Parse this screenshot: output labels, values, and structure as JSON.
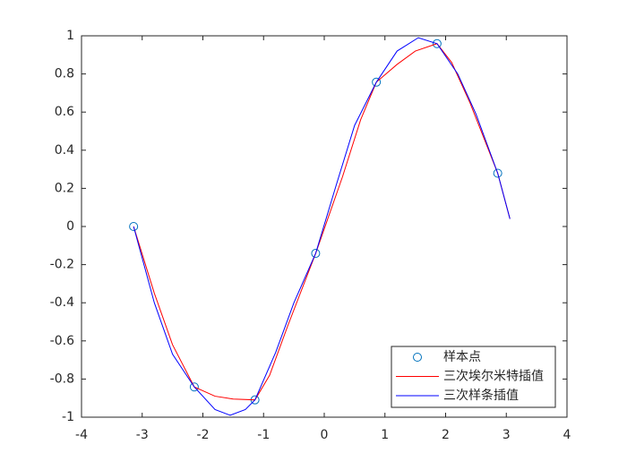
{
  "chart_data": {
    "type": "line",
    "xlim": [
      -4,
      4
    ],
    "ylim": [
      -1,
      1
    ],
    "xticks": [
      -4,
      -3,
      -2,
      -1,
      0,
      1,
      2,
      3,
      4
    ],
    "yticks": [
      -1,
      -0.8,
      -0.6,
      -0.4,
      -0.2,
      0,
      0.2,
      0.4,
      0.6,
      0.8,
      1
    ],
    "legend": "lower-right",
    "grid": false,
    "series": [
      {
        "name": "样本点",
        "color": "#0072bd",
        "style": "marker",
        "x": [
          -3.1416,
          -2.1416,
          -1.1416,
          -0.1416,
          0.8584,
          1.8584,
          2.8584
        ],
        "values": [
          0,
          -0.8415,
          -0.9093,
          -0.1411,
          0.7568,
          0.9589,
          0.2794
        ]
      },
      {
        "name": "三次埃尔米特插值",
        "color": "#ff0000",
        "style": "line",
        "x": [
          -3.1416,
          -2.8,
          -2.5,
          -2.1416,
          -1.8,
          -1.5,
          -1.1416,
          -0.9,
          -0.6,
          -0.1416,
          0.3,
          0.6,
          0.8584,
          1.2,
          1.5,
          1.8584,
          2.1,
          2.4,
          2.8584,
          3.06
        ],
        "values": [
          0,
          -0.35,
          -0.62,
          -0.8415,
          -0.89,
          -0.905,
          -0.9093,
          -0.78,
          -0.52,
          -0.1411,
          0.26,
          0.56,
          0.7568,
          0.85,
          0.92,
          0.9589,
          0.86,
          0.65,
          0.2794,
          0.04
        ]
      },
      {
        "name": "三次样条插值",
        "color": "#0000ff",
        "style": "line",
        "x": [
          -3.1416,
          -2.8,
          -2.5,
          -2.1416,
          -1.8,
          -1.55,
          -1.3,
          -1.1416,
          -0.8,
          -0.5,
          -0.1416,
          0.2,
          0.5,
          0.8584,
          1.2,
          1.55,
          1.8584,
          2.2,
          2.5,
          2.8584,
          3.06
        ],
        "values": [
          0,
          -0.4,
          -0.67,
          -0.8415,
          -0.96,
          -0.99,
          -0.96,
          -0.9093,
          -0.66,
          -0.4,
          -0.1411,
          0.22,
          0.53,
          0.7568,
          0.92,
          0.99,
          0.9589,
          0.8,
          0.59,
          0.2794,
          0.04
        ]
      }
    ]
  }
}
